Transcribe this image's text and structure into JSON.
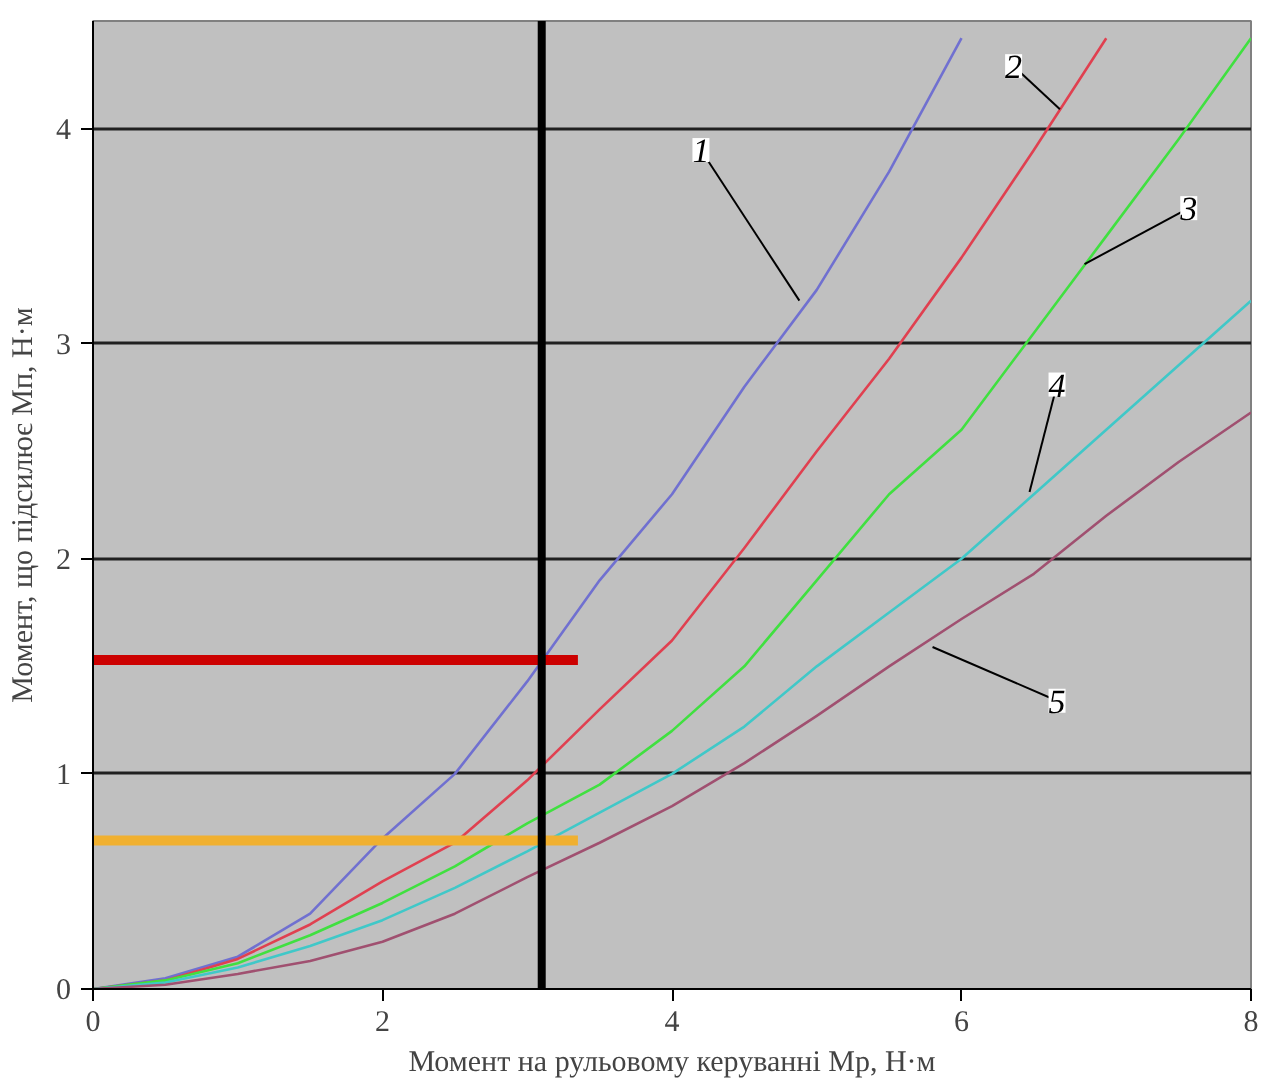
{
  "chart_data": {
    "type": "line",
    "xlabel": "Момент на рульовому керуванні Мр, Н·м",
    "ylabel": "Момент, що підсилює Мп, Н·м",
    "xlim": [
      0,
      8
    ],
    "ylim": [
      0,
      4.5
    ],
    "xticks": [
      0,
      2,
      4,
      6,
      8
    ],
    "yticks": [
      0,
      1,
      2,
      3,
      4
    ],
    "grid": "y",
    "series": [
      {
        "color": "#7070d0",
        "x": [
          0,
          0.5,
          1,
          1.5,
          2,
          2.5,
          3,
          3.5,
          4,
          4.5,
          5,
          5.5,
          6
        ],
        "values": [
          0,
          0.05,
          0.15,
          0.35,
          0.7,
          1.0,
          1.43,
          1.9,
          2.3,
          2.8,
          3.25,
          3.8,
          4.42
        ]
      },
      {
        "color": "#e04050",
        "x": [
          0,
          0.5,
          1,
          1.5,
          2,
          2.5,
          3,
          3.5,
          4,
          4.5,
          5,
          5.5,
          6,
          6.5,
          7
        ],
        "values": [
          0,
          0.04,
          0.14,
          0.3,
          0.5,
          0.68,
          0.97,
          1.3,
          1.62,
          2.05,
          2.5,
          2.93,
          3.4,
          3.9,
          4.42
        ]
      },
      {
        "color": "#40e040",
        "x": [
          0,
          0.5,
          1,
          1.5,
          2,
          2.5,
          3,
          3.5,
          4,
          4.5,
          5,
          5.5,
          6,
          6.5,
          7,
          7.5,
          8
        ],
        "values": [
          0,
          0.04,
          0.12,
          0.25,
          0.4,
          0.57,
          0.77,
          0.95,
          1.2,
          1.5,
          1.9,
          2.3,
          2.6,
          3.05,
          3.5,
          3.95,
          4.42
        ]
      },
      {
        "color": "#40c8c8",
        "x": [
          0,
          0.5,
          1,
          1.5,
          2,
          2.5,
          3,
          3.5,
          4,
          4.5,
          5,
          5.5,
          6,
          6.5,
          7,
          7.5,
          8
        ],
        "values": [
          0,
          0.03,
          0.1,
          0.2,
          0.32,
          0.47,
          0.64,
          0.82,
          1.0,
          1.22,
          1.5,
          1.75,
          2.0,
          2.3,
          2.6,
          2.9,
          3.2
        ]
      },
      {
        "color": "#a05070",
        "x": [
          0,
          0.5,
          1,
          1.5,
          2,
          2.5,
          3,
          3.5,
          4,
          4.5,
          5,
          5.5,
          6,
          6.5,
          7,
          7.5,
          8
        ],
        "values": [
          0,
          0.02,
          0.07,
          0.13,
          0.22,
          0.35,
          0.52,
          0.68,
          0.85,
          1.05,
          1.27,
          1.5,
          1.72,
          1.93,
          2.2,
          2.45,
          2.68
        ]
      }
    ],
    "ref_lines": [
      {
        "axis": "x",
        "value": 3.1,
        "color": "#000000"
      },
      {
        "axis": "y",
        "value": 1.53,
        "color": "#cc0000"
      },
      {
        "axis": "y",
        "value": 0.69,
        "color": "#f0b030"
      }
    ],
    "annotations": [
      {
        "text": "1",
        "x": 4.88,
        "y": 3.2
      },
      {
        "text": "2",
        "x": 6.68,
        "y": 4.09
      },
      {
        "text": "3",
        "x": 6.85,
        "y": 3.37
      },
      {
        "text": "4",
        "x": 6.47,
        "y": 2.31
      },
      {
        "text": "5",
        "x": 5.8,
        "y": 1.59
      }
    ]
  }
}
